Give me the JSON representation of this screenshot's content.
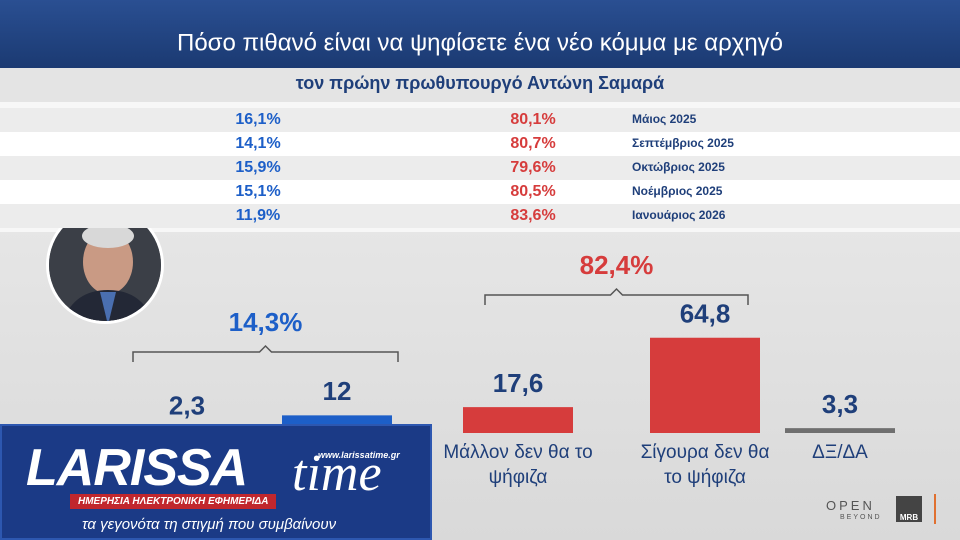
{
  "header": {
    "title": "Πόσο πιθανό είναι να ψηφίσετε ένα νέο κόμμα με αρχηγό",
    "subtitle": "τον πρώην πρωθυπουργό Αντώνη Σαμαρά"
  },
  "table": {
    "rows": [
      [
        "16,1%",
        "80,1%",
        "Μάιος 2025"
      ],
      [
        "14,1%",
        "80,7%",
        "Σεπτέμβριος 2025"
      ],
      [
        "15,9%",
        "79,6%",
        "Οκτώβριος 2025"
      ],
      [
        "15,1%",
        "80,5%",
        "Νοέμβριος 2025"
      ],
      [
        "11,9%",
        "83,6%",
        "Ιανουάριος 2026"
      ]
    ]
  },
  "chart_data": {
    "type": "bar",
    "categories": [
      null,
      null,
      "Μάλλον δεν θα το ψήφιζα",
      "Σίγουρα δεν θα το ψήφιζα",
      "ΔΞ/ΔΑ"
    ],
    "values": [
      2.3,
      12,
      17.6,
      64.8,
      3.3
    ],
    "value_labels": [
      "2,3",
      "12",
      "17,6",
      "64,8",
      "3,3"
    ],
    "colors": [
      "#1d5fc8",
      "#1d5fc8",
      "#d63c3c",
      "#d63c3c",
      "#6f6f6f"
    ],
    "annotations": [
      {
        "text": "14,3%",
        "color": "#1d5fc8"
      },
      {
        "text": "82,4%",
        "color": "#d63c3c"
      }
    ]
  },
  "logo": {
    "name": "LARISSA",
    "name2": "time",
    "url": "www.larissatime.gr",
    "strap": "ΗΜΕΡΗΣΙΑ ΗΛΕΚΤΡΟΝΙΚΗ ΕΦΗΜΕΡΙΔΑ",
    "tagline": "τα γεγονότα τη στιγμή που συμβαίνουν"
  },
  "broadcaster": {
    "channel": "OPEN",
    "channel_sub": "BEYOND",
    "pollster": "MRB"
  }
}
